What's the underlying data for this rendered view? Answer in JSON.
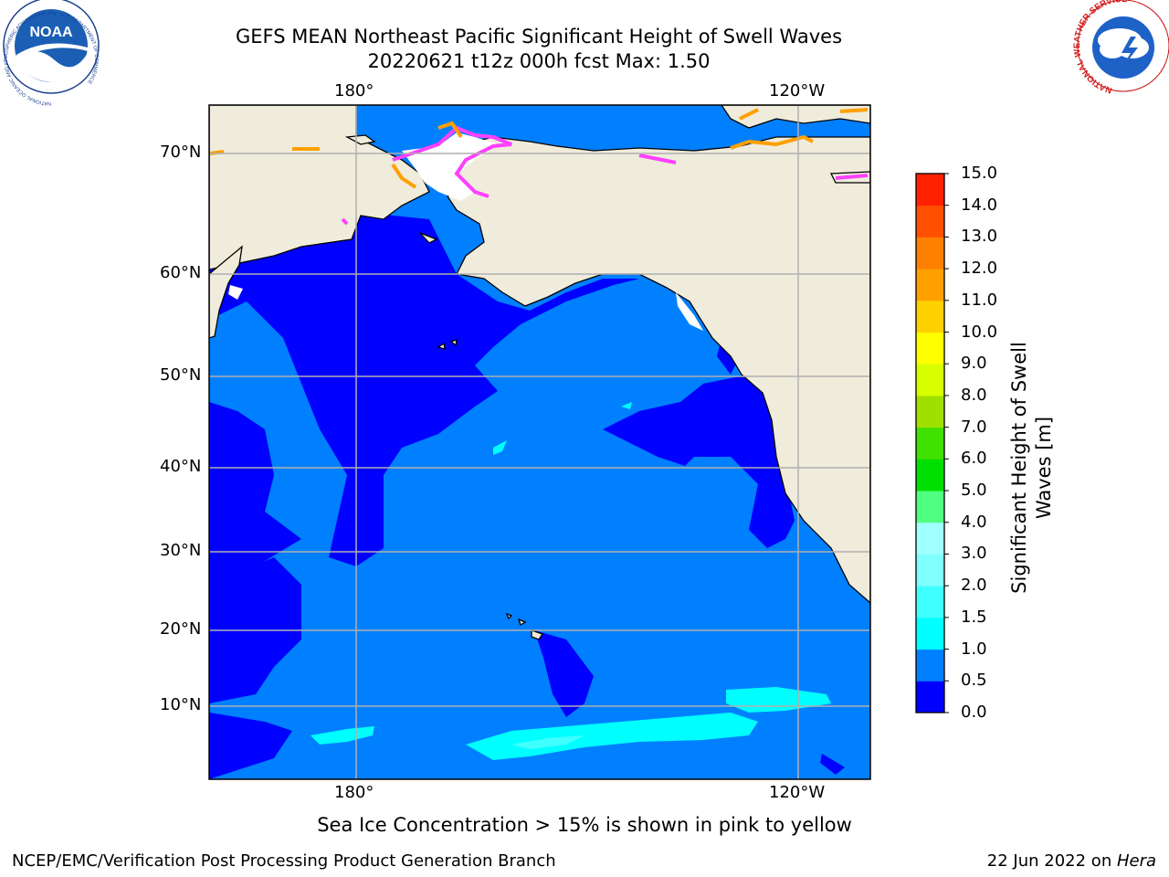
{
  "title": {
    "line1": "GEFS MEAN Northeast Pacific Significant Height of Swell Waves",
    "line2": "20220621 t12z 000h fcst   Max: 1.50"
  },
  "axes": {
    "lon_ticks": [
      "180°",
      "120°W"
    ],
    "lat_ticks": [
      "70°N",
      "60°N",
      "50°N",
      "40°N",
      "30°N",
      "20°N",
      "10°N"
    ]
  },
  "colorbar": {
    "label_line1": "Significant Height of Swell",
    "label_line2": "Waves [m]",
    "ticks": [
      "0.0",
      "0.5",
      "1.0",
      "1.5",
      "2.0",
      "3.0",
      "4.0",
      "5.0",
      "6.0",
      "7.0",
      "8.0",
      "9.0",
      "10.0",
      "11.0",
      "12.0",
      "13.0",
      "14.0",
      "15.0"
    ],
    "colors": [
      "#0000ff",
      "#0080ff",
      "#00ffff",
      "#40ffff",
      "#80ffff",
      "#a0ffff",
      "#50ff80",
      "#00e000",
      "#40e000",
      "#a0e000",
      "#d8ff00",
      "#ffff00",
      "#ffd000",
      "#ffa000",
      "#ff8000",
      "#ff5000",
      "#ff2000"
    ]
  },
  "map": {
    "land_color": "#efecdc",
    "ocean_colors": {
      "0.0-0.5": "#0000ff",
      "0.5-1.0": "#0080ff",
      "1.0-1.5": "#00ffff",
      "1.5-2.0": "#40ffff"
    },
    "ice_colors": [
      "#ff40ff",
      "#ffa000",
      "#ffd060"
    ]
  },
  "annotation": "Sea Ice Concentration > 15% is shown in pink to yellow",
  "footer": {
    "left": "NCEP/EMC/Verification Post Processing Product Generation Branch",
    "right_date": "22 Jun 2022 on ",
    "right_host": "Hera"
  },
  "logos": {
    "noaa_text": "NOAA",
    "noaa_ring": "NATIONAL OCEANIC AND ATMOSPHERIC ADMINISTRATION · U.S. DEPARTMENT OF COMMERCE",
    "nws_ring": "NATIONAL WEATHER SERVICE"
  }
}
